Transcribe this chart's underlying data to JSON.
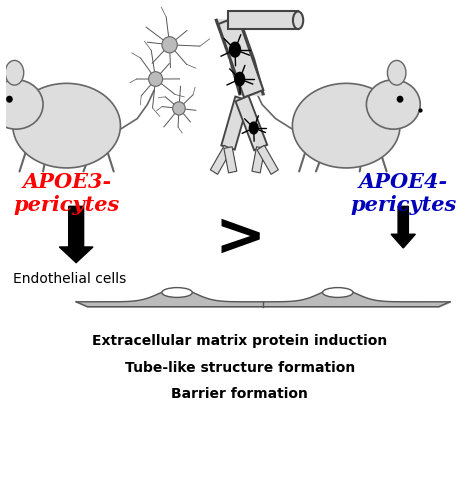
{
  "apoe3_label": "APOE3-\npericytes",
  "apoe4_label": "APOE4-\npericytes",
  "apoe3_color": "#FF0000",
  "apoe4_color": "#0000BB",
  "greater_than": ">",
  "endothelial_label": "Endothelial cells",
  "outcome_lines": [
    "Extracellular matrix protein induction",
    "Tube-like structure formation",
    "Barrier formation"
  ],
  "background_color": "#FFFFFF",
  "arrow_color": "#000000",
  "mouse_fill": "#DDDDDD",
  "mouse_edge": "#666666",
  "vessel_fill": "#DDDDDD",
  "vessel_edge": "#444444",
  "pericyte_color": "#000000",
  "cell_fill": "#BBBBBB",
  "cell_edge": "#555555",
  "figsize": [
    4.74,
    4.91
  ],
  "dpi": 100
}
